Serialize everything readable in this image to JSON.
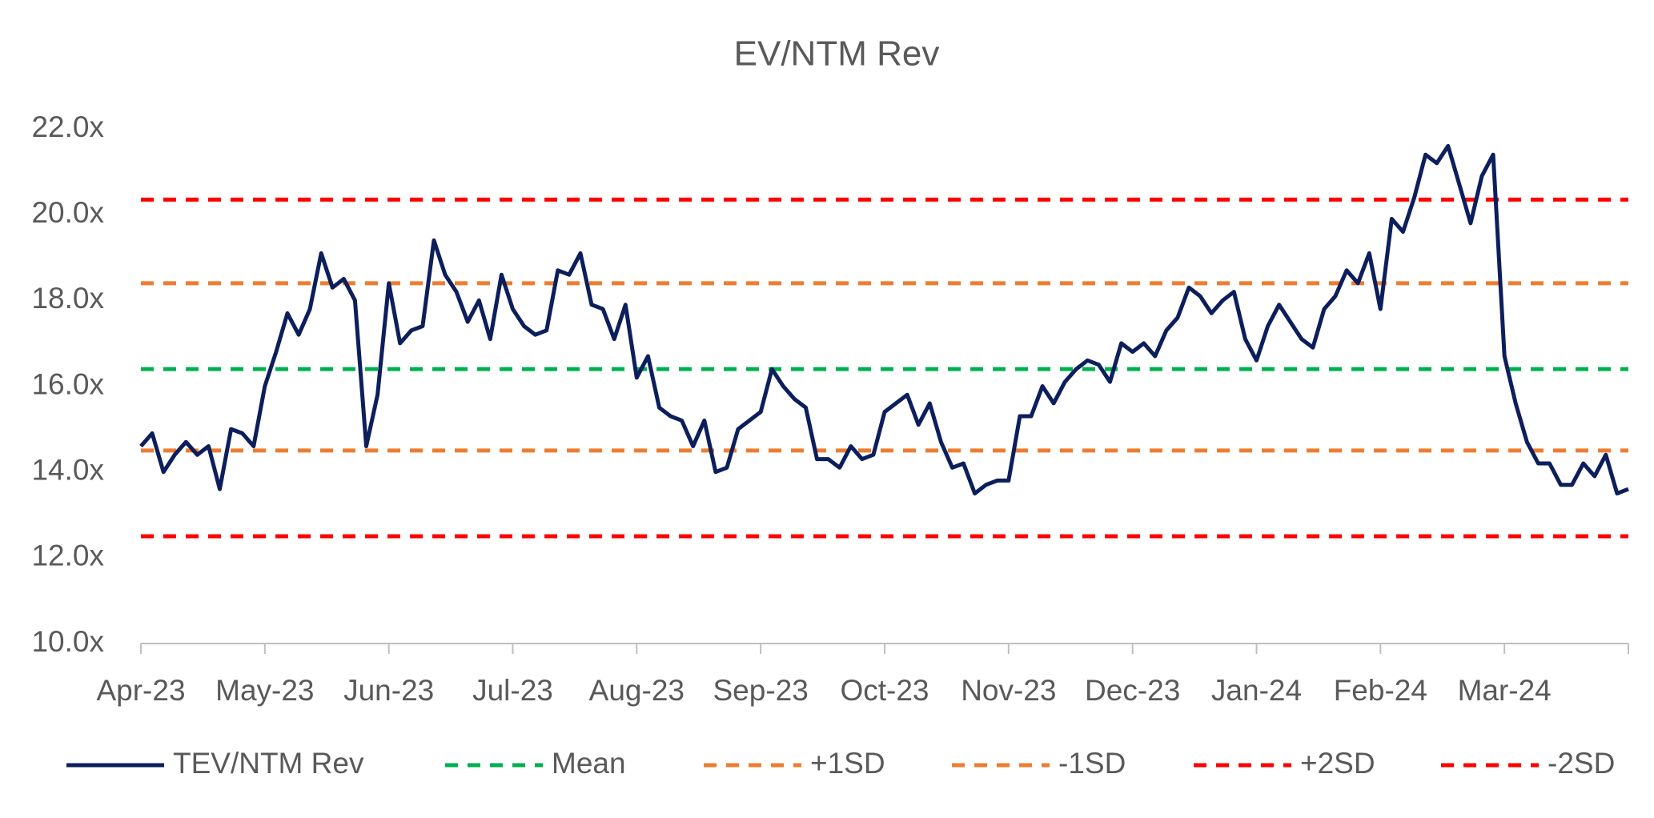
{
  "chart_data": {
    "type": "line",
    "title": "EV/NTM Rev",
    "categories": [
      "Apr-23",
      null,
      null,
      null,
      null,
      null,
      null,
      null,
      null,
      null,
      null,
      "May-23",
      null,
      null,
      null,
      null,
      null,
      null,
      null,
      null,
      null,
      null,
      "Jun-23",
      null,
      null,
      null,
      null,
      null,
      null,
      null,
      null,
      null,
      null,
      "Jul-23",
      null,
      null,
      null,
      null,
      null,
      null,
      null,
      null,
      null,
      null,
      "Aug-23",
      null,
      null,
      null,
      null,
      null,
      null,
      null,
      null,
      null,
      null,
      "Sep-23",
      null,
      null,
      null,
      null,
      null,
      null,
      null,
      null,
      null,
      null,
      "Oct-23",
      null,
      null,
      null,
      null,
      null,
      null,
      null,
      null,
      null,
      null,
      "Nov-23",
      null,
      null,
      null,
      null,
      null,
      null,
      null,
      null,
      null,
      null,
      "Dec-23",
      null,
      null,
      null,
      null,
      null,
      null,
      null,
      null,
      null,
      null,
      "Jan-24",
      null,
      null,
      null,
      null,
      null,
      null,
      null,
      null,
      null,
      null,
      "Feb-24",
      null,
      null,
      null,
      null,
      null,
      null,
      null,
      null,
      null,
      null,
      "Mar-24",
      null,
      null,
      null,
      null,
      null,
      null,
      null,
      null,
      null,
      null,
      null
    ],
    "series": [
      {
        "name": "TEV/NTM Rev",
        "color": "#0c1f5c",
        "values": [
          14.6,
          14.9,
          14.0,
          14.4,
          14.7,
          14.4,
          14.6,
          13.6,
          15.0,
          14.9,
          14.6,
          16.0,
          16.8,
          17.7,
          17.2,
          17.8,
          19.1,
          18.3,
          18.5,
          18.0,
          14.6,
          15.8,
          18.4,
          17.0,
          17.3,
          17.4,
          19.4,
          18.6,
          18.2,
          17.5,
          18.0,
          17.1,
          18.6,
          17.8,
          17.4,
          17.2,
          17.3,
          18.7,
          18.6,
          19.1,
          17.9,
          17.8,
          17.1,
          17.9,
          16.2,
          16.7,
          15.5,
          15.3,
          15.2,
          14.6,
          15.2,
          14.0,
          14.1,
          15.0,
          15.2,
          15.4,
          16.4,
          16.0,
          15.7,
          15.5,
          14.3,
          14.3,
          14.1,
          14.6,
          14.3,
          14.4,
          15.4,
          15.6,
          15.8,
          15.1,
          15.6,
          14.7,
          14.1,
          14.2,
          13.5,
          13.7,
          13.8,
          13.8,
          15.3,
          15.3,
          16.0,
          15.6,
          16.1,
          16.4,
          16.6,
          16.5,
          16.1,
          17.0,
          16.8,
          17.0,
          16.7,
          17.3,
          17.6,
          18.3,
          18.1,
          17.7,
          18.0,
          18.2,
          17.1,
          16.6,
          17.4,
          17.9,
          17.5,
          17.1,
          16.9,
          17.8,
          18.1,
          18.7,
          18.4,
          19.1,
          17.8,
          19.9,
          19.6,
          20.4,
          21.4,
          21.2,
          21.6,
          20.7,
          19.8,
          20.9,
          21.4,
          16.7,
          15.6,
          14.7,
          14.2,
          14.2,
          13.7,
          13.7,
          14.2,
          13.9,
          14.4,
          13.5,
          13.6
        ]
      }
    ],
    "reference_lines": [
      {
        "name": "Mean",
        "color": "#00b050",
        "value": 16.4
      },
      {
        "name": "+1SD",
        "color": "#ed7d31",
        "value": 18.4
      },
      {
        "name": "-1SD",
        "color": "#ed7d31",
        "value": 14.5
      },
      {
        "name": "+2SD",
        "color": "#ff0000",
        "value": 20.35
      },
      {
        "name": "-2SD",
        "color": "#ff0000",
        "value": 12.5
      }
    ],
    "ylim": [
      10,
      22
    ],
    "yticks": [
      {
        "value": 10,
        "label": "10.0x"
      },
      {
        "value": 12,
        "label": "12.0x"
      },
      {
        "value": 14,
        "label": "14.0x"
      },
      {
        "value": 16,
        "label": "16.0x"
      },
      {
        "value": 18,
        "label": "18.0x"
      },
      {
        "value": 20,
        "label": "20.0x"
      },
      {
        "value": 22,
        "label": "22.0x"
      }
    ],
    "grid": false,
    "legend": "bottom"
  }
}
